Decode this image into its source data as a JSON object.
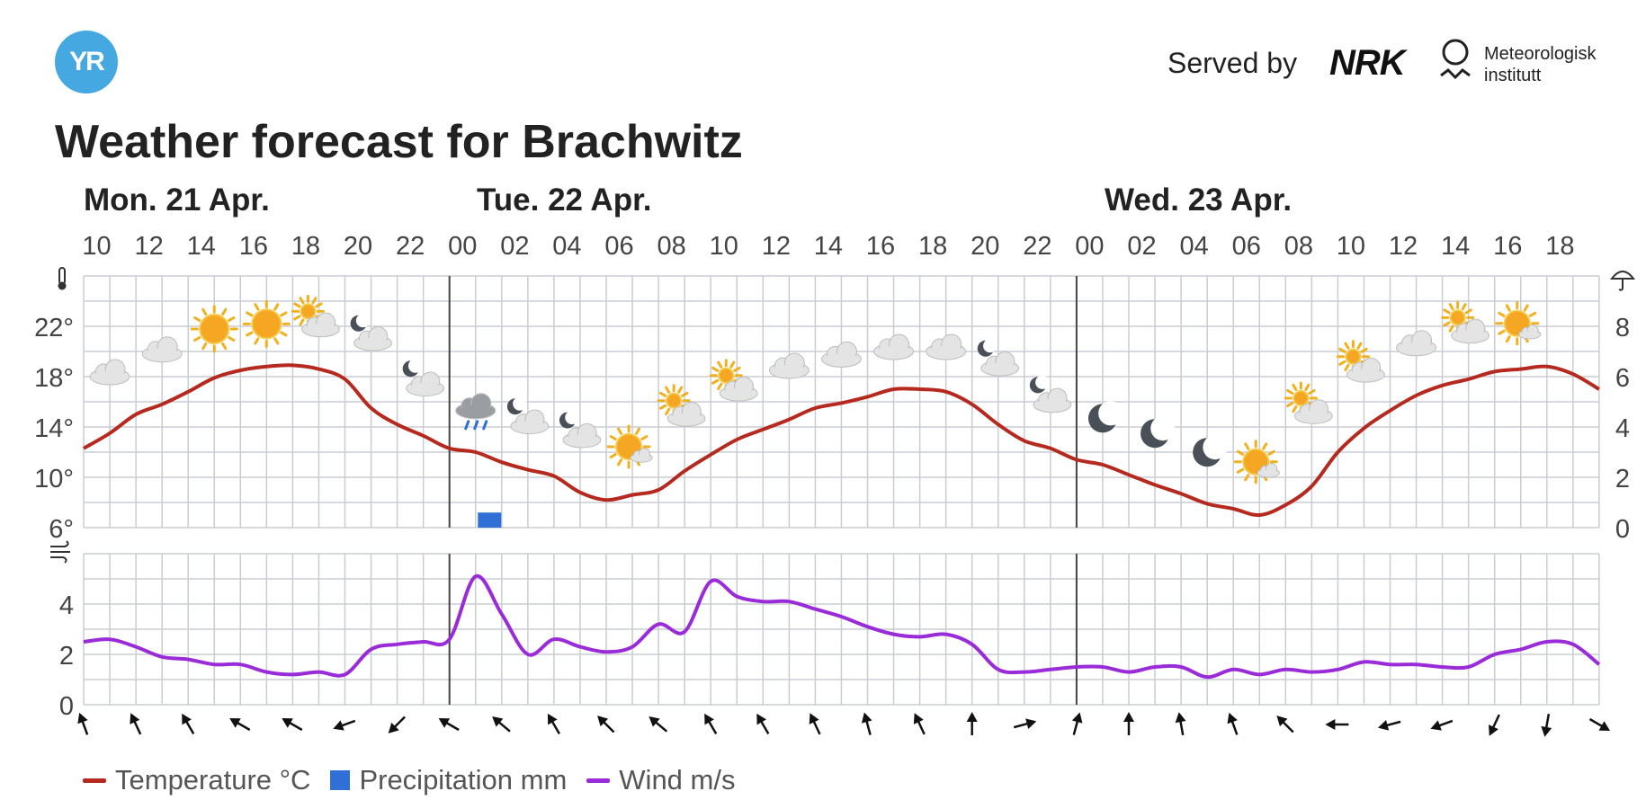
{
  "header": {
    "logo_text": "YR",
    "served_by": "Served by",
    "nrk_text": "NRK",
    "met_line1": "Meteorologisk",
    "met_line2": "institutt",
    "title": "Weather forecast for Brachwitz"
  },
  "colors": {
    "temperature": "#b5291f",
    "precipitation": "#2f6fd6",
    "wind": "#9a2bd8",
    "grid": "#c8cdd4",
    "day_divider": "#444444"
  },
  "chart_data": {
    "type": "line",
    "days": [
      {
        "label": "Mon. 21 Apr.",
        "start_hour_index": 0
      },
      {
        "label": "Tue. 22 Apr.",
        "start_hour_index": 14
      },
      {
        "label": "Wed. 23 Apr.",
        "start_hour_index": 38
      }
    ],
    "hour_labels": [
      "10",
      "12",
      "14",
      "16",
      "18",
      "20",
      "22",
      "00",
      "02",
      "04",
      "06",
      "08",
      "10",
      "12",
      "14",
      "16",
      "18",
      "20",
      "22",
      "00",
      "02",
      "04",
      "06",
      "08",
      "10",
      "12",
      "14",
      "16",
      "18"
    ],
    "hours_from_start": [
      0,
      1,
      2,
      3,
      4,
      5,
      6,
      7,
      8,
      9,
      10,
      11,
      12,
      13,
      14,
      15,
      16,
      17,
      18,
      19,
      20,
      21,
      22,
      23,
      24,
      25,
      26,
      27,
      28,
      29,
      30,
      31,
      32,
      33,
      34,
      35,
      36,
      37,
      38,
      39,
      40,
      41,
      42,
      43,
      44,
      45,
      46,
      47,
      48,
      49,
      50,
      51,
      52,
      53,
      54,
      55,
      56,
      57,
      58
    ],
    "temperature": {
      "name": "Temperature °C",
      "axis_ticks": [
        "6°",
        "10°",
        "14°",
        "18°",
        "22°"
      ],
      "ylim": [
        6,
        26
      ],
      "values": [
        12.3,
        13.5,
        15.0,
        15.8,
        16.8,
        17.9,
        18.5,
        18.8,
        18.9,
        18.6,
        17.8,
        15.5,
        14.2,
        13.3,
        12.3,
        12.0,
        11.2,
        10.6,
        10.1,
        8.8,
        8.2,
        8.6,
        9.0,
        10.5,
        11.8,
        13.0,
        13.8,
        14.6,
        15.5,
        15.9,
        16.4,
        17.0,
        17.0,
        16.8,
        15.8,
        14.2,
        12.9,
        12.3,
        11.4,
        11.0,
        10.2,
        9.4,
        8.7,
        7.9,
        7.5,
        7.0,
        7.8,
        9.3,
        12.0,
        13.9,
        15.3,
        16.5,
        17.3,
        17.8,
        18.4,
        18.6,
        18.8,
        18.2,
        17.0
      ]
    },
    "precipitation": {
      "name": "Precipitation mm",
      "axis_ticks": [
        "0",
        "2",
        "4",
        "6",
        "8"
      ],
      "ylim": [
        0,
        10
      ],
      "bars": [
        {
          "hour_index": 15.5,
          "value": 0.6
        }
      ]
    },
    "wind": {
      "name": "Wind m/s",
      "axis_ticks": [
        "0",
        "2",
        "4"
      ],
      "ylim": [
        0,
        6
      ],
      "values": [
        2.5,
        2.6,
        2.3,
        1.9,
        1.8,
        1.6,
        1.6,
        1.3,
        1.2,
        1.3,
        1.2,
        2.2,
        2.4,
        2.5,
        2.6,
        5.1,
        3.6,
        2.0,
        2.6,
        2.3,
        2.1,
        2.3,
        3.2,
        2.9,
        4.9,
        4.3,
        4.1,
        4.1,
        3.8,
        3.5,
        3.1,
        2.8,
        2.7,
        2.8,
        2.4,
        1.4,
        1.3,
        1.4,
        1.5,
        1.5,
        1.3,
        1.5,
        1.5,
        1.1,
        1.4,
        1.2,
        1.4,
        1.3,
        1.4,
        1.7,
        1.6,
        1.6,
        1.5,
        1.5,
        2.0,
        2.2,
        2.5,
        2.4,
        1.6
      ]
    },
    "wind_directions_deg": [
      70,
      65,
      60,
      30,
      30,
      -20,
      -45,
      30,
      40,
      60,
      45,
      40,
      60,
      60,
      65,
      75,
      65,
      90,
      165,
      105,
      90,
      80,
      70,
      45,
      0,
      -15,
      -20,
      -65,
      -80,
      -150
    ],
    "weather_icons": [
      {
        "slot": 1,
        "type": "cloudy"
      },
      {
        "slot": 3,
        "type": "cloudy"
      },
      {
        "slot": 5,
        "type": "clearsky"
      },
      {
        "slot": 7,
        "type": "clearsky"
      },
      {
        "slot": 9,
        "type": "partlycloudy_day"
      },
      {
        "slot": 11,
        "type": "partlycloudy_night"
      },
      {
        "slot": 13,
        "type": "partlycloudy_night"
      },
      {
        "slot": 15,
        "type": "lightrain"
      },
      {
        "slot": 17,
        "type": "partlycloudy_night"
      },
      {
        "slot": 19,
        "type": "partlycloudy_night"
      },
      {
        "slot": 21,
        "type": "fair_day"
      },
      {
        "slot": 23,
        "type": "partlycloudy_day"
      },
      {
        "slot": 25,
        "type": "partlycloudy_day"
      },
      {
        "slot": 27,
        "type": "cloudy"
      },
      {
        "slot": 29,
        "type": "cloudy"
      },
      {
        "slot": 31,
        "type": "cloudy"
      },
      {
        "slot": 33,
        "type": "cloudy"
      },
      {
        "slot": 35,
        "type": "partlycloudy_night"
      },
      {
        "slot": 37,
        "type": "partlycloudy_night"
      },
      {
        "slot": 39,
        "type": "clearsky_night"
      },
      {
        "slot": 41,
        "type": "clearsky_night"
      },
      {
        "slot": 43,
        "type": "clearsky_night"
      },
      {
        "slot": 45,
        "type": "fair_day"
      },
      {
        "slot": 47,
        "type": "partlycloudy_day"
      },
      {
        "slot": 49,
        "type": "partlycloudy_day"
      },
      {
        "slot": 51,
        "type": "cloudy"
      },
      {
        "slot": 53,
        "type": "partlycloudy_day"
      },
      {
        "slot": 55,
        "type": "fair_day"
      }
    ],
    "grid": "on",
    "legend": "bottom-left"
  },
  "legend": {
    "temperature": "Temperature °C",
    "precipitation": "Precipitation mm",
    "wind": "Wind m/s"
  }
}
